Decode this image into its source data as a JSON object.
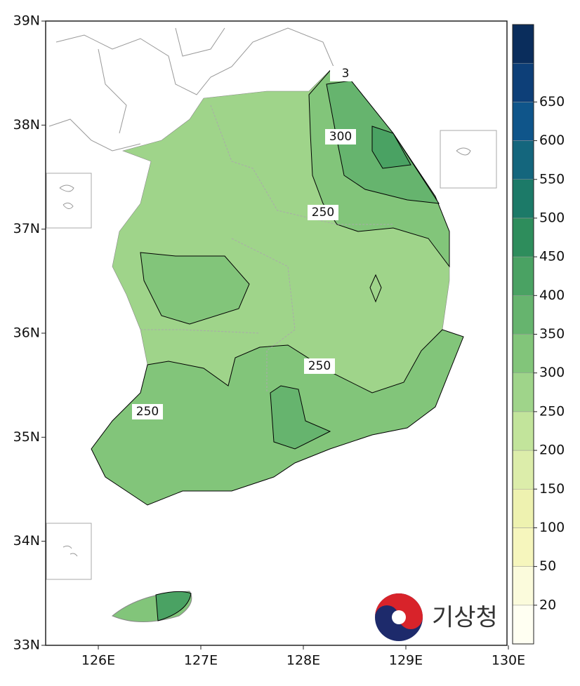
{
  "map": {
    "lat_ticks": [
      {
        "value": 39,
        "label": "39N"
      },
      {
        "value": 38,
        "label": "38N"
      },
      {
        "value": 37,
        "label": "37N"
      },
      {
        "value": 36,
        "label": "36N"
      },
      {
        "value": 35,
        "label": "35N"
      },
      {
        "value": 34,
        "label": "34N"
      },
      {
        "value": 33,
        "label": "33N"
      }
    ],
    "lon_ticks": [
      {
        "value": 126,
        "label": "126E"
      },
      {
        "value": 127,
        "label": "127E"
      },
      {
        "value": 128,
        "label": "128E"
      },
      {
        "value": 129,
        "label": "129E"
      },
      {
        "value": 130,
        "label": "130E"
      }
    ],
    "colorbar": {
      "levels": [
        20,
        50,
        100,
        150,
        200,
        250,
        300,
        350,
        400,
        450,
        500,
        550,
        600,
        650
      ],
      "colors": [
        "#fffff2",
        "#fbfbdc",
        "#f6f6bd",
        "#eef2b0",
        "#dcedaa",
        "#c2e49b",
        "#9fd48a",
        "#82c57a",
        "#66b46e",
        "#4aa263",
        "#2e8d5c",
        "#1c7a68",
        "#14667d",
        "#0f558a",
        "#0d3f78",
        "#0a2d5c"
      ]
    },
    "contour_labels": [
      "3",
      "300",
      "250",
      "250",
      "250"
    ],
    "logo": "기상청"
  }
}
